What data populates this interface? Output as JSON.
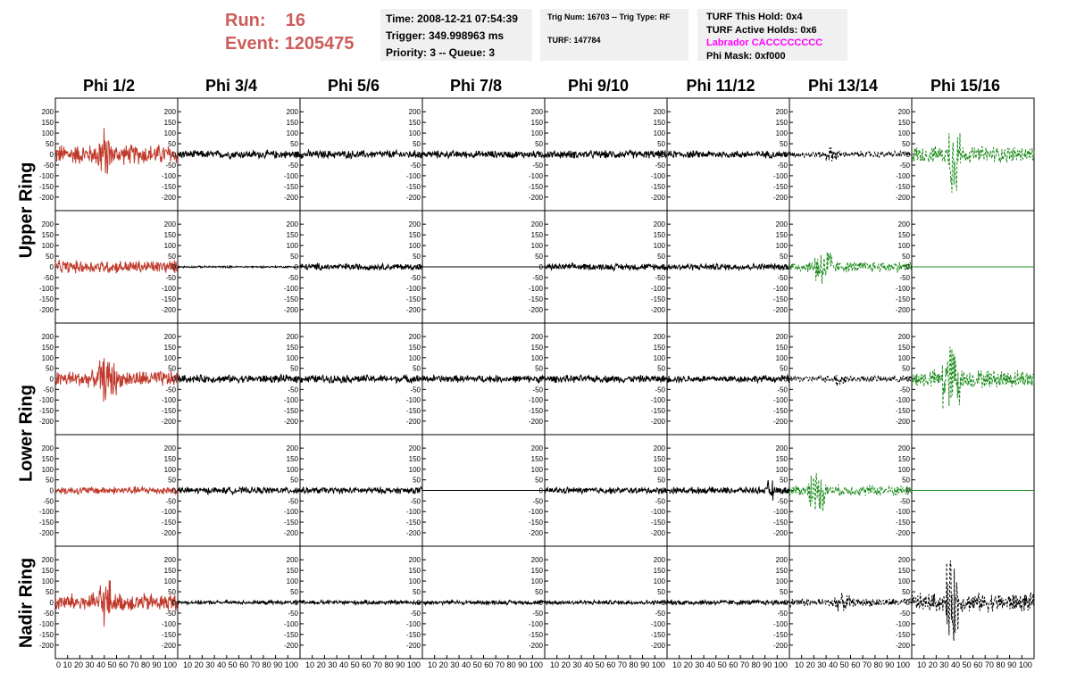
{
  "header": {
    "run_label": "Run:",
    "run_value": "16",
    "event_label": "Event:",
    "event_value": "1205475"
  },
  "info_time": {
    "time": "Time: 2008-12-21 07:54:39",
    "trigger": "Trigger: 349.998963 ms",
    "priority": "Priority: 3 -- Queue: 3"
  },
  "info_trig": {
    "trig": "Trig Num: 16703 -- Trig Type: RF",
    "turf": "TURF: 147784"
  },
  "info_turf": {
    "this_hold": "TURF This Hold: 0x4",
    "active_holds": "TURF Active Holds: 0x6",
    "labrador": "Labrador CACCCCCCCC",
    "phi_mask": "Phi Mask: 0xf000",
    "labrador_color": "#ff00ff"
  },
  "columns": [
    "Phi 1/2",
    "Phi 3/4",
    "Phi 5/6",
    "Phi 7/8",
    "Phi 9/10",
    "Phi 11/12",
    "Phi 13/14",
    "Phi 15/16"
  ],
  "rings": [
    "Upper Ring",
    "Lower Ring",
    "Nadir Ring"
  ],
  "colors": {
    "red": "#c0392b",
    "black": "#000000",
    "green": "#1e8c1e",
    "header_red": "#cd5c5c"
  },
  "chart_data": {
    "type": "line",
    "ylim": [
      -230,
      230
    ],
    "xlim": [
      0,
      100
    ],
    "y_ticks": [
      200,
      150,
      100,
      50,
      0,
      -50,
      -100,
      -150,
      -200
    ],
    "x_ticks": [
      0,
      10,
      20,
      30,
      40,
      50,
      60,
      70,
      80,
      90,
      100
    ],
    "x_tick_labels_first": "0 10 20 30 40 50 60 70 80 90 100",
    "x_tick_labels_rest": "10 20 30 40 50 60 70 80 90 100",
    "panels": [
      {
        "row": 0,
        "col": 0,
        "color": "red",
        "amp": 55,
        "burst": [
          35,
          45
        ],
        "burst_amp": 150,
        "style": "solid",
        "flat": false
      },
      {
        "row": 0,
        "col": 1,
        "color": "black",
        "amp": 22,
        "style": "solid",
        "flat": false
      },
      {
        "row": 0,
        "col": 2,
        "color": "black",
        "amp": 22,
        "style": "solid",
        "flat": false
      },
      {
        "row": 0,
        "col": 3,
        "color": "black",
        "amp": 20,
        "style": "solid",
        "flat": false
      },
      {
        "row": 0,
        "col": 4,
        "color": "black",
        "amp": 22,
        "style": "solid",
        "flat": false
      },
      {
        "row": 0,
        "col": 5,
        "color": "black",
        "amp": 20,
        "style": "solid",
        "flat": false
      },
      {
        "row": 0,
        "col": 6,
        "color": "black",
        "amp": 18,
        "burst": [
          30,
          40
        ],
        "burst_amp": 40,
        "style": "dashed",
        "flat": false
      },
      {
        "row": 0,
        "col": 7,
        "color": "green",
        "amp": 45,
        "burst": [
          30,
          40
        ],
        "burst_amp": 220,
        "style": "dashed",
        "flat": false
      },
      {
        "row": 1,
        "col": 0,
        "color": "red",
        "amp": 35,
        "style": "solid",
        "flat": false
      },
      {
        "row": 1,
        "col": 1,
        "color": "black",
        "amp": 5,
        "style": "solid",
        "flat": false
      },
      {
        "row": 1,
        "col": 2,
        "color": "black",
        "amp": 18,
        "style": "solid",
        "flat": false
      },
      {
        "row": 1,
        "col": 3,
        "color": "black",
        "amp": 0,
        "style": "solid",
        "flat": true
      },
      {
        "row": 1,
        "col": 4,
        "color": "black",
        "amp": 18,
        "style": "solid",
        "flat": false
      },
      {
        "row": 1,
        "col": 5,
        "color": "black",
        "amp": 18,
        "style": "solid",
        "flat": false
      },
      {
        "row": 1,
        "col": 6,
        "color": "green",
        "amp": 30,
        "burst": [
          20,
          35
        ],
        "burst_amp": 110,
        "style": "dashed",
        "flat": false
      },
      {
        "row": 1,
        "col": 7,
        "color": "green",
        "amp": 0,
        "style": "solid",
        "flat": true
      },
      {
        "row": 2,
        "col": 0,
        "color": "red",
        "amp": 45,
        "burst": [
          35,
          50
        ],
        "burst_amp": 120,
        "style": "solid",
        "flat": false
      },
      {
        "row": 2,
        "col": 1,
        "color": "black",
        "amp": 22,
        "style": "solid",
        "flat": false
      },
      {
        "row": 2,
        "col": 2,
        "color": "black",
        "amp": 22,
        "style": "solid",
        "flat": false
      },
      {
        "row": 2,
        "col": 3,
        "color": "black",
        "amp": 20,
        "style": "solid",
        "flat": false
      },
      {
        "row": 2,
        "col": 4,
        "color": "black",
        "amp": 20,
        "style": "solid",
        "flat": false
      },
      {
        "row": 2,
        "col": 5,
        "color": "black",
        "amp": 20,
        "style": "solid",
        "flat": false
      },
      {
        "row": 2,
        "col": 6,
        "color": "black",
        "amp": 18,
        "burst": [
          38,
          46
        ],
        "burst_amp": 50,
        "style": "dashed",
        "flat": false
      },
      {
        "row": 2,
        "col": 7,
        "color": "green",
        "amp": 50,
        "burst": [
          25,
          40
        ],
        "burst_amp": 200,
        "style": "dashed",
        "flat": false
      },
      {
        "row": 3,
        "col": 0,
        "color": "red",
        "amp": 22,
        "style": "solid",
        "flat": false
      },
      {
        "row": 3,
        "col": 1,
        "color": "black",
        "amp": 18,
        "style": "solid",
        "flat": false
      },
      {
        "row": 3,
        "col": 2,
        "color": "black",
        "amp": 18,
        "style": "solid",
        "flat": false
      },
      {
        "row": 3,
        "col": 3,
        "color": "black",
        "amp": 0,
        "style": "solid",
        "flat": true
      },
      {
        "row": 3,
        "col": 4,
        "color": "black",
        "amp": 18,
        "style": "solid",
        "flat": false
      },
      {
        "row": 3,
        "col": 5,
        "color": "black",
        "amp": 18,
        "burst": [
          82,
          88
        ],
        "burst_amp": 60,
        "style": "solid",
        "flat": false
      },
      {
        "row": 3,
        "col": 6,
        "color": "green",
        "amp": 30,
        "burst": [
          15,
          30
        ],
        "burst_amp": 110,
        "style": "dashed",
        "flat": false
      },
      {
        "row": 3,
        "col": 7,
        "color": "green",
        "amp": 0,
        "style": "solid",
        "flat": true
      },
      {
        "row": 4,
        "col": 0,
        "color": "red",
        "amp": 50,
        "burst": [
          35,
          45
        ],
        "burst_amp": 130,
        "style": "solid",
        "flat": false
      },
      {
        "row": 4,
        "col": 1,
        "color": "black",
        "amp": 10,
        "style": "solid",
        "flat": false
      },
      {
        "row": 4,
        "col": 2,
        "color": "black",
        "amp": 12,
        "style": "solid",
        "flat": false
      },
      {
        "row": 4,
        "col": 3,
        "color": "black",
        "amp": 12,
        "style": "solid",
        "flat": false
      },
      {
        "row": 4,
        "col": 4,
        "color": "black",
        "amp": 12,
        "style": "solid",
        "flat": false
      },
      {
        "row": 4,
        "col": 5,
        "color": "black",
        "amp": 14,
        "style": "solid",
        "flat": false
      },
      {
        "row": 4,
        "col": 6,
        "color": "black",
        "amp": 22,
        "burst": [
          35,
          50
        ],
        "burst_amp": 45,
        "style": "dashed",
        "flat": false
      },
      {
        "row": 4,
        "col": 7,
        "color": "black",
        "amp": 50,
        "burst": [
          28,
          38
        ],
        "burst_amp": 220,
        "style": "dashed",
        "flat": false
      }
    ]
  }
}
